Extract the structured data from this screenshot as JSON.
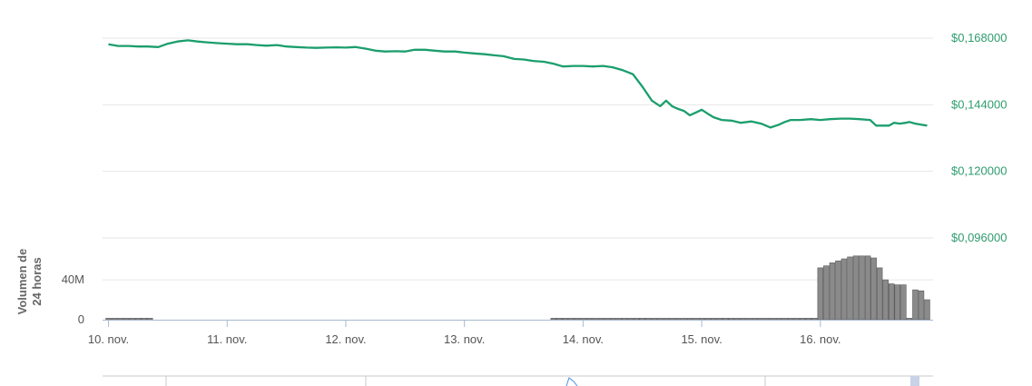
{
  "chart_data": {
    "type": "line",
    "title": "",
    "price": {
      "ylabel": "",
      "ylim": [
        0.096,
        0.168
      ],
      "yticks": [
        0.168,
        0.144,
        0.12,
        0.096
      ],
      "ytick_labels": [
        "$0,168000",
        "$0,144000",
        "$0,120000",
        "$0,096000"
      ],
      "color": "#1b9e6d",
      "x": [
        10.0,
        10.08,
        10.17,
        10.25,
        10.33,
        10.42,
        10.5,
        10.58,
        10.67,
        10.75,
        10.83,
        10.92,
        11.0,
        11.08,
        11.17,
        11.25,
        11.33,
        11.42,
        11.5,
        11.58,
        11.67,
        11.75,
        11.83,
        11.92,
        12.0,
        12.08,
        12.17,
        12.25,
        12.33,
        12.42,
        12.5,
        12.58,
        12.67,
        12.75,
        12.83,
        12.92,
        13.0,
        13.08,
        13.17,
        13.25,
        13.33,
        13.42,
        13.5,
        13.58,
        13.67,
        13.75,
        13.83,
        13.92,
        14.0,
        14.08,
        14.17,
        14.25,
        14.33,
        14.42,
        14.5,
        14.58,
        14.65,
        14.7,
        14.75,
        14.8,
        14.85,
        14.9,
        14.95,
        15.0,
        15.05,
        15.1,
        15.17,
        15.25,
        15.33,
        15.42,
        15.5,
        15.58,
        15.65,
        15.7,
        15.75,
        15.83,
        15.92,
        16.0,
        16.08,
        16.17,
        16.25,
        16.33,
        16.42,
        16.47,
        16.52,
        16.58,
        16.62,
        16.67,
        16.72,
        16.75,
        16.8,
        16.85,
        16.9
      ],
      "y": [
        0.1658,
        0.1652,
        0.1652,
        0.165,
        0.165,
        0.1648,
        0.166,
        0.1668,
        0.1672,
        0.1668,
        0.1665,
        0.1662,
        0.166,
        0.1658,
        0.1658,
        0.1655,
        0.1653,
        0.1655,
        0.165,
        0.1648,
        0.1646,
        0.1645,
        0.1646,
        0.1647,
        0.1646,
        0.1648,
        0.1642,
        0.1635,
        0.1632,
        0.1633,
        0.1632,
        0.1638,
        0.1638,
        0.1635,
        0.1632,
        0.1632,
        0.1628,
        0.1625,
        0.1622,
        0.1618,
        0.1615,
        0.1605,
        0.1603,
        0.1598,
        0.1595,
        0.1588,
        0.1578,
        0.158,
        0.158,
        0.1578,
        0.158,
        0.1575,
        0.1565,
        0.155,
        0.1505,
        0.1455,
        0.1435,
        0.1455,
        0.1435,
        0.1425,
        0.1418,
        0.1402,
        0.1412,
        0.1422,
        0.1408,
        0.1395,
        0.1385,
        0.1383,
        0.1375,
        0.138,
        0.1372,
        0.1358,
        0.1368,
        0.1378,
        0.1385,
        0.1385,
        0.1388,
        0.1385,
        0.1388,
        0.139,
        0.139,
        0.1388,
        0.1385,
        0.1365,
        0.1365,
        0.1365,
        0.1375,
        0.1372,
        0.1375,
        0.1378,
        0.1372,
        0.1368,
        0.1365
      ]
    },
    "volume": {
      "label_line1": "Volumen de",
      "label_line2": "24 horas",
      "ylim": [
        0,
        82000000
      ],
      "yticks": [
        0,
        40000000
      ],
      "ytick_labels": [
        "0",
        "40M"
      ],
      "color": "#8a8a8a",
      "x": [
        10.0,
        10.05,
        10.1,
        10.15,
        10.2,
        10.25,
        10.3,
        10.35,
        13.75,
        13.8,
        13.85,
        13.9,
        13.95,
        14.0,
        14.05,
        14.1,
        14.15,
        14.2,
        14.25,
        14.3,
        14.35,
        14.4,
        14.45,
        14.5,
        14.55,
        14.6,
        14.65,
        14.7,
        14.75,
        14.8,
        14.85,
        14.9,
        14.95,
        15.0,
        15.05,
        15.1,
        15.15,
        15.2,
        15.25,
        15.3,
        15.35,
        15.4,
        15.45,
        15.5,
        15.55,
        15.6,
        15.65,
        15.7,
        15.75,
        15.8,
        15.85,
        15.9,
        15.95,
        16.0,
        16.05,
        16.1,
        16.15,
        16.2,
        16.25,
        16.3,
        16.35,
        16.4,
        16.45,
        16.5,
        16.55,
        16.6,
        16.65,
        16.7,
        16.75,
        16.8,
        16.85,
        16.9
      ],
      "values": [
        1500000,
        1500000,
        1500000,
        1500000,
        1500000,
        1500000,
        1500000,
        1500000,
        1500000,
        1500000,
        1500000,
        1500000,
        1500000,
        1500000,
        1500000,
        1500000,
        1500000,
        1500000,
        1500000,
        1500000,
        1500000,
        1500000,
        1500000,
        1500000,
        1500000,
        1500000,
        1500000,
        1500000,
        1500000,
        1500000,
        1500000,
        1500000,
        1500000,
        1500000,
        1500000,
        1500000,
        1500000,
        1500000,
        1500000,
        1500000,
        1500000,
        1500000,
        1500000,
        1500000,
        1500000,
        1500000,
        1500000,
        1500000,
        1500000,
        1500000,
        1500000,
        1500000,
        1500000,
        52000000,
        54000000,
        57000000,
        59000000,
        61000000,
        63000000,
        64000000,
        64000000,
        64000000,
        62000000,
        52000000,
        40000000,
        36000000,
        35000000,
        35000000,
        1500000,
        30000000,
        29000000,
        20000000
      ]
    },
    "xaxis": {
      "xlim": [
        9.95,
        16.95
      ],
      "ticks": [
        10,
        11,
        12,
        13,
        14,
        15,
        16
      ],
      "tick_labels": [
        "10. nov.",
        "11. nov.",
        "12. nov.",
        "13. nov.",
        "14. nov.",
        "15. nov.",
        "16. nov."
      ]
    },
    "grid": true,
    "legend": "none"
  }
}
